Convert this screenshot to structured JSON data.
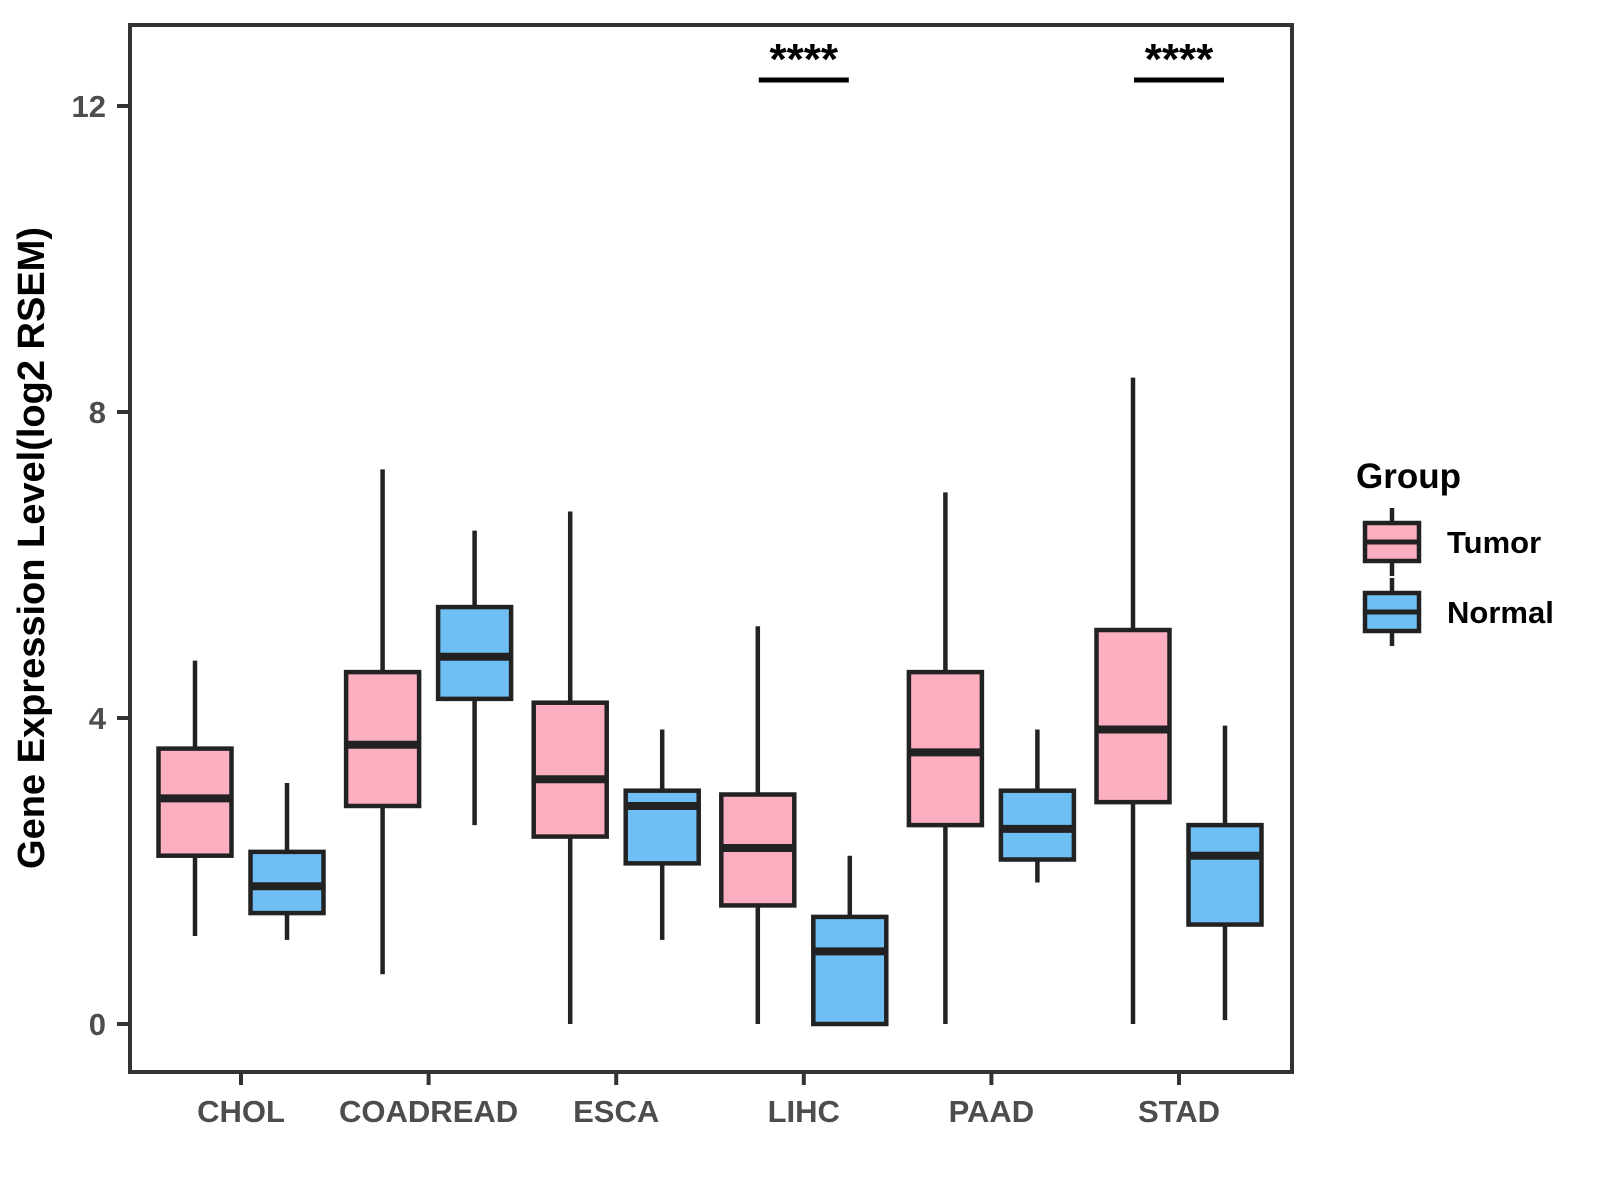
{
  "chart_data": {
    "type": "boxplot",
    "title": "",
    "xlabel": "",
    "ylabel": "Gene Expression Level(log2 RSEM)",
    "categories": [
      "CHOL",
      "COADREAD",
      "ESCA",
      "LIHC",
      "PAAD",
      "STAD"
    ],
    "yticks": [
      0,
      4,
      8,
      12
    ],
    "ylim": [
      -0.65,
      13.1
    ],
    "grid": false,
    "legend": {
      "title": "Group",
      "position": "right",
      "entries": [
        {
          "label": "Tumor",
          "color": "#FBAFC0"
        },
        {
          "label": "Normal",
          "color": "#6FBFF4"
        }
      ]
    },
    "series": [
      {
        "name": "Tumor",
        "color": "#FBAFC0",
        "boxes": [
          {
            "category": "CHOL",
            "low": 1.15,
            "q1": 2.2,
            "median": 2.95,
            "q3": 3.6,
            "high": 4.75
          },
          {
            "category": "COADREAD",
            "low": 0.65,
            "q1": 2.85,
            "median": 3.65,
            "q3": 4.6,
            "high": 7.25
          },
          {
            "category": "ESCA",
            "low": 0.0,
            "q1": 2.45,
            "median": 3.2,
            "q3": 4.2,
            "high": 6.7
          },
          {
            "category": "LIHC",
            "low": 0.0,
            "q1": 1.55,
            "median": 2.3,
            "q3": 3.0,
            "high": 5.2
          },
          {
            "category": "PAAD",
            "low": 0.0,
            "q1": 2.6,
            "median": 3.55,
            "q3": 4.6,
            "high": 6.95
          },
          {
            "category": "STAD",
            "low": 0.0,
            "q1": 2.9,
            "median": 3.85,
            "q3": 5.15,
            "high": 8.45
          }
        ]
      },
      {
        "name": "Normal",
        "color": "#6FBFF4",
        "boxes": [
          {
            "category": "CHOL",
            "low": 1.1,
            "q1": 1.45,
            "median": 1.8,
            "q3": 2.25,
            "high": 3.15
          },
          {
            "category": "COADREAD",
            "low": 2.6,
            "q1": 4.25,
            "median": 4.8,
            "q3": 5.45,
            "high": 6.45
          },
          {
            "category": "ESCA",
            "low": 1.1,
            "q1": 2.1,
            "median": 2.85,
            "q3": 3.05,
            "high": 3.85
          },
          {
            "category": "LIHC",
            "low": 0.0,
            "q1": 0.0,
            "median": 0.95,
            "q3": 1.4,
            "high": 2.2
          },
          {
            "category": "PAAD",
            "low": 1.85,
            "q1": 2.15,
            "median": 2.55,
            "q3": 3.05,
            "high": 3.85
          },
          {
            "category": "STAD",
            "low": 0.05,
            "q1": 1.3,
            "median": 2.2,
            "q3": 2.6,
            "high": 3.9
          }
        ]
      }
    ],
    "annotations": [
      {
        "category": "LIHC",
        "label": "****"
      },
      {
        "category": "STAD",
        "label": "****"
      }
    ],
    "colors": {
      "box_outline": "#222222",
      "panel_border": "#333333",
      "axis_text": "#4D4D4D",
      "axis_title": "#000000",
      "annotation": "#000000",
      "background": "#FFFFFF"
    }
  }
}
